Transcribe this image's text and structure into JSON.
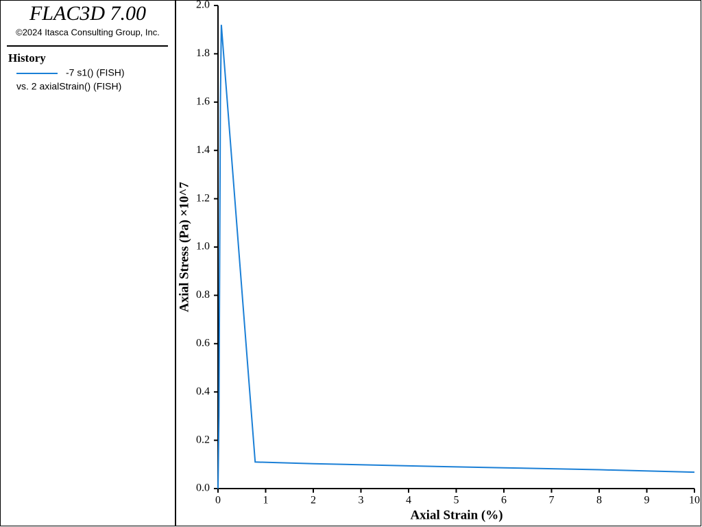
{
  "header": {
    "title": "FLAC3D 7.00",
    "copyright": "©2024 Itasca Consulting Group, Inc."
  },
  "legend": {
    "heading": "History",
    "x_series": "vs. 2 axialStrain() (FISH)"
  },
  "chart_data": {
    "type": "line",
    "xlabel": "Axial Strain (%)",
    "ylabel": "Axial Stress (Pa) ×10^7",
    "x": [
      0,
      0.02,
      0.05,
      0.07,
      0.78,
      2,
      4,
      6,
      8,
      10
    ],
    "series": [
      {
        "name": "-7 s1() (FISH)",
        "color": "#1a7fd6",
        "values": [
          0,
          0.3,
          1.6,
          1.92,
          0.11,
          0.103,
          0.094,
          0.086,
          0.078,
          0.068
        ]
      }
    ],
    "xlim": [
      0,
      10
    ],
    "ylim": [
      0,
      2
    ],
    "xticks": [
      0,
      1,
      2,
      3,
      4,
      5,
      6,
      7,
      8,
      9,
      10
    ],
    "yticks": [
      {
        "value": 0,
        "label": "0.0"
      },
      0.2,
      0.4,
      0.6,
      0.8,
      {
        "value": 1,
        "label": "1.0"
      },
      1.2,
      1.4,
      1.6,
      1.8,
      {
        "value": 2,
        "label": "2.0"
      }
    ]
  }
}
